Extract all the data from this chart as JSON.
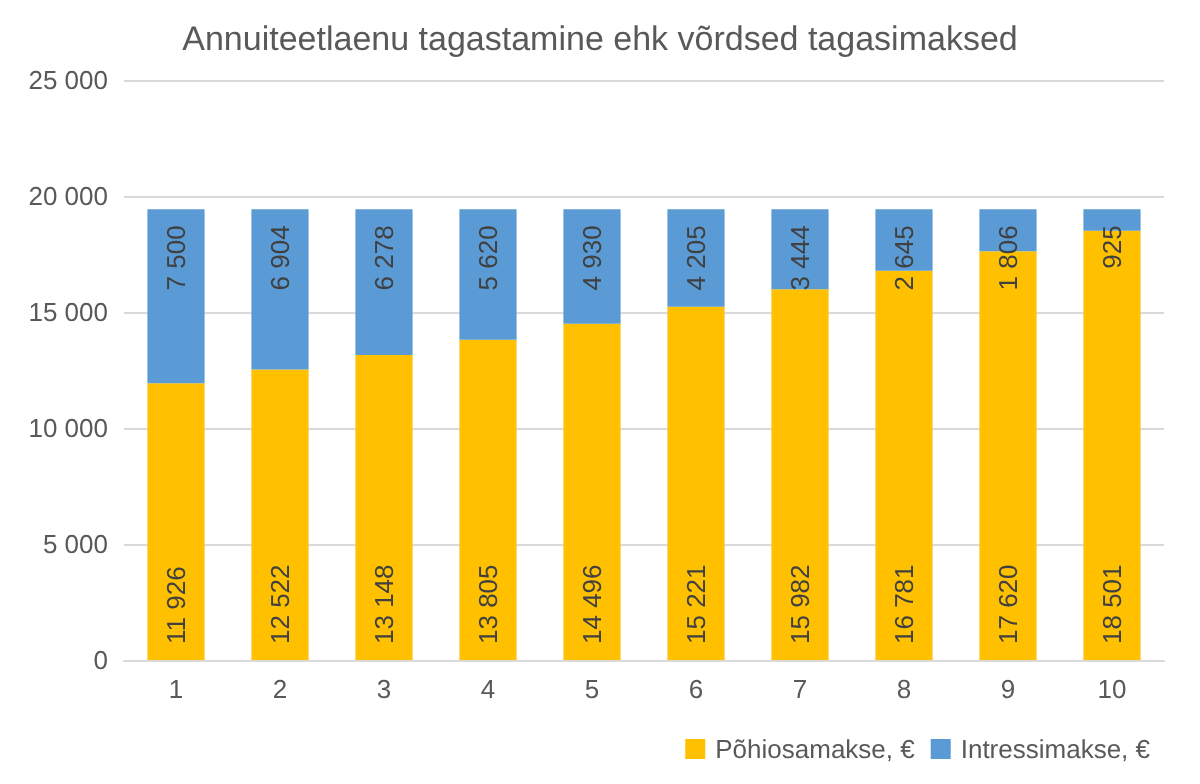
{
  "chart_data": {
    "type": "bar",
    "title": "Annuiteetlaenu tagastamine ehk võrdsed tagasimaksed",
    "categories": [
      "1",
      "2",
      "3",
      "4",
      "5",
      "6",
      "7",
      "8",
      "9",
      "10"
    ],
    "stacked": true,
    "series": [
      {
        "name": "Põhiosamakse, €",
        "color": "#ffc000",
        "values": [
          11926,
          12522,
          13148,
          13805,
          14496,
          15221,
          15982,
          16781,
          17620,
          18501
        ],
        "value_labels": [
          "11 926",
          "12 522",
          "13 148",
          "13 805",
          "14 496",
          "15 221",
          "15 982",
          "16 781",
          "17 620",
          "18 501"
        ]
      },
      {
        "name": "Intressimakse, €",
        "color": "#5b9bd5",
        "values": [
          7500,
          6904,
          6278,
          5620,
          4930,
          4205,
          3444,
          2645,
          1806,
          925
        ],
        "value_labels": [
          "7 500",
          "6 904",
          "6 278",
          "5 620",
          "4 930",
          "4 205",
          "3 444",
          "2 645",
          "1 806",
          "925"
        ]
      }
    ],
    "ylim": [
      0,
      25000
    ],
    "yticks": [
      {
        "value": 0,
        "label": "0"
      },
      {
        "value": 5000,
        "label": "5 000"
      },
      {
        "value": 10000,
        "label": "10 000"
      },
      {
        "value": 15000,
        "label": "15 000"
      },
      {
        "value": 20000,
        "label": "20 000"
      },
      {
        "value": 25000,
        "label": "25 000"
      }
    ],
    "grid": "y",
    "legend": "bottom right"
  }
}
